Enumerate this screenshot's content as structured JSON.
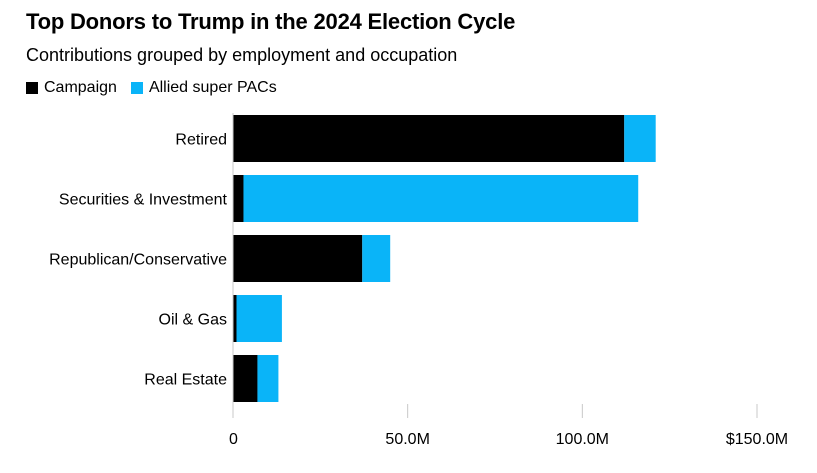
{
  "title": "Top Donors to Trump in the 2024 Election Cycle",
  "subtitle": "Contributions grouped by employment and occupation",
  "colors": {
    "campaign": "#000000",
    "super_pacs": "#0ab4f8",
    "gridline": "#c8c8c8"
  },
  "chart_data": {
    "type": "bar",
    "orientation": "horizontal",
    "stacked": true,
    "categories": [
      "Retired",
      "Securities & Investment",
      "Republican/Conservative",
      "Oil & Gas",
      "Real Estate"
    ],
    "series": [
      {
        "name": "Campaign",
        "values": [
          112,
          3,
          37,
          1,
          7
        ]
      },
      {
        "name": "Allied super PACs",
        "values": [
          9,
          113,
          8,
          13,
          6
        ]
      }
    ],
    "xlim": [
      0,
      150
    ],
    "ticks": [
      0,
      50,
      100,
      150
    ],
    "tick_labels": [
      "0",
      "50.0M",
      "100.0M",
      "$150.0M"
    ],
    "legend_position": "top-left",
    "grid": "vertical-ticks"
  }
}
